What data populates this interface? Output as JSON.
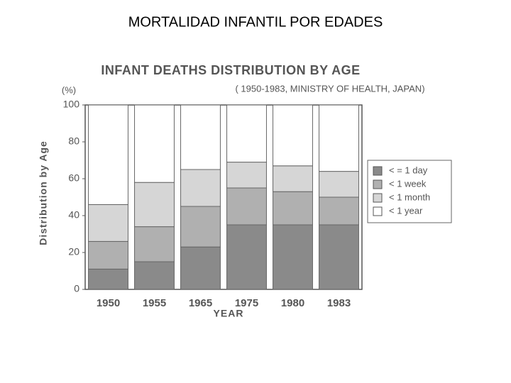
{
  "slide_title": "MORTALIDAD INFANTIL POR EDADES",
  "chart_data": {
    "type": "stacked_bar",
    "title": "INFANT DEATHS DISTRIBUTION BY AGE",
    "subtitle": "( 1950-1983, MINISTRY OF HEALTH, JAPAN)",
    "unit_label": "(%)",
    "y_label": "Distribution by Age",
    "x_label": "YEAR",
    "categories": [
      "1950",
      "1955",
      "1965",
      "1975",
      "1980",
      "1983"
    ],
    "series": [
      {
        "name": "< = 1 day",
        "color": "#8a8a8a",
        "values": [
          11,
          15,
          23,
          35,
          35,
          35
        ]
      },
      {
        "name": "< 1 week",
        "color": "#b0b0b0",
        "values": [
          15,
          19,
          22,
          20,
          18,
          15
        ]
      },
      {
        "name": "< 1 month",
        "color": "#d6d6d6",
        "values": [
          20,
          24,
          20,
          14,
          14,
          14
        ]
      },
      {
        "name": "< 1 year",
        "color": "#ffffff",
        "values": [
          54,
          42,
          35,
          31,
          33,
          36
        ]
      }
    ],
    "ylim": [
      0,
      100
    ],
    "yticks": [
      0,
      20,
      40,
      60,
      80,
      100
    ],
    "legend": "right"
  }
}
